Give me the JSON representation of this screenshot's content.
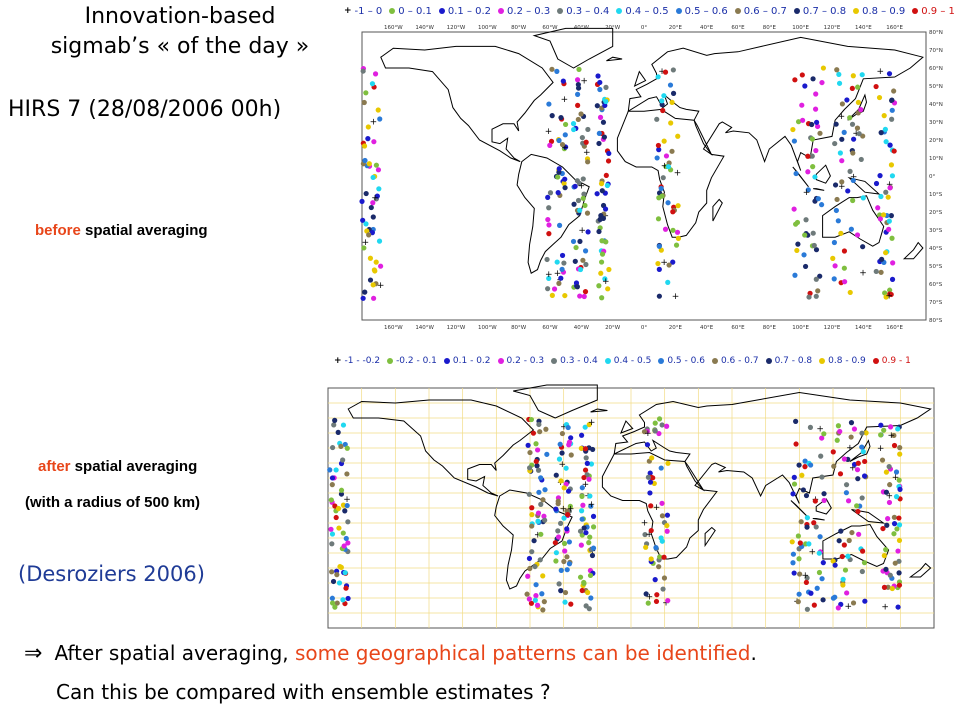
{
  "title_line1": "Innovation-based",
  "title_line2": "sigmab’s « of the day »",
  "subtitle": "HIRS 7 (28/08/2006 00h)",
  "caption_before": {
    "highlight": "before",
    "rest": " spatial averaging"
  },
  "caption_after": {
    "highlight": "after",
    "rest": " spatial averaging"
  },
  "caption_radius": "(with a radius of 500 km)",
  "reference": "(Desroziers 2006)",
  "bottom_line1": {
    "prefix": "After spatial averaging, ",
    "highlight": "some geographical patterns can be identified",
    "suffix": "."
  },
  "bottom_line2": "Can this be compared with ensemble estimates ?",
  "legend_top": [
    {
      "label": "-1 – 0",
      "color": "#000000",
      "marker": "plus"
    },
    {
      "label": "0 – 0.1",
      "color": "#7fbf3f",
      "marker": "dot"
    },
    {
      "label": "0.1 – 0.2",
      "color": "#1a1acc",
      "marker": "dot"
    },
    {
      "label": "0.2 – 0.3",
      "color": "#e020e0",
      "marker": "dot"
    },
    {
      "label": "0.3 – 0.4",
      "color": "#6e7a7a",
      "marker": "dot"
    },
    {
      "label": "0.4 – 0.5",
      "color": "#20d8f0",
      "marker": "dot"
    },
    {
      "label": "0.5 – 0.6",
      "color": "#2a7ad8",
      "marker": "dot"
    },
    {
      "label": "0.6 – 0.7",
      "color": "#8a7a50",
      "marker": "dot"
    },
    {
      "label": "0.7 – 0.8",
      "color": "#1a2a6a",
      "marker": "dot"
    },
    {
      "label": "0.8 – 0.9",
      "color": "#e8c800",
      "marker": "dot"
    },
    {
      "label": "0.9 – 1",
      "color": "#d01010",
      "marker": "dot"
    }
  ],
  "legend_bottom": [
    {
      "label": "-1 - -0.2",
      "color": "#000000",
      "marker": "plus"
    },
    {
      "label": "-0.2 - 0.1",
      "color": "#7fbf3f",
      "marker": "dot"
    },
    {
      "label": "0.1 - 0.2",
      "color": "#1a1acc",
      "marker": "dot"
    },
    {
      "label": "0.2 - 0.3",
      "color": "#e020e0",
      "marker": "dot"
    },
    {
      "label": "0.3 - 0.4",
      "color": "#6e7a7a",
      "marker": "dot"
    },
    {
      "label": "0.4 - 0.5",
      "color": "#20d8f0",
      "marker": "dot"
    },
    {
      "label": "0.5 - 0.6",
      "color": "#2a7ad8",
      "marker": "dot"
    },
    {
      "label": "0.6 - 0.7",
      "color": "#8a7a50",
      "marker": "dot"
    },
    {
      "label": "0.7 - 0.8",
      "color": "#1a2a6a",
      "marker": "dot"
    },
    {
      "label": "0.8 - 0.9",
      "color": "#e8c800",
      "marker": "dot"
    },
    {
      "label": "0.9 - 1",
      "color": "#d01010",
      "marker": "dot"
    }
  ],
  "lon_labels": [
    "160°W",
    "140°W",
    "120°W",
    "100°W",
    "80°W",
    "60°W",
    "40°W",
    "20°W",
    "0°",
    "20°E",
    "40°E",
    "60°E",
    "80°E",
    "100°E",
    "120°E",
    "140°E",
    "160°E"
  ],
  "lat_labels": [
    "80°N",
    "70°N",
    "60°N",
    "50°N",
    "40°N",
    "30°N",
    "20°N",
    "10°N",
    "0°",
    "10°S",
    "20°S",
    "30°S",
    "40°S",
    "50°S",
    "60°S",
    "70°S",
    "80°S"
  ]
}
